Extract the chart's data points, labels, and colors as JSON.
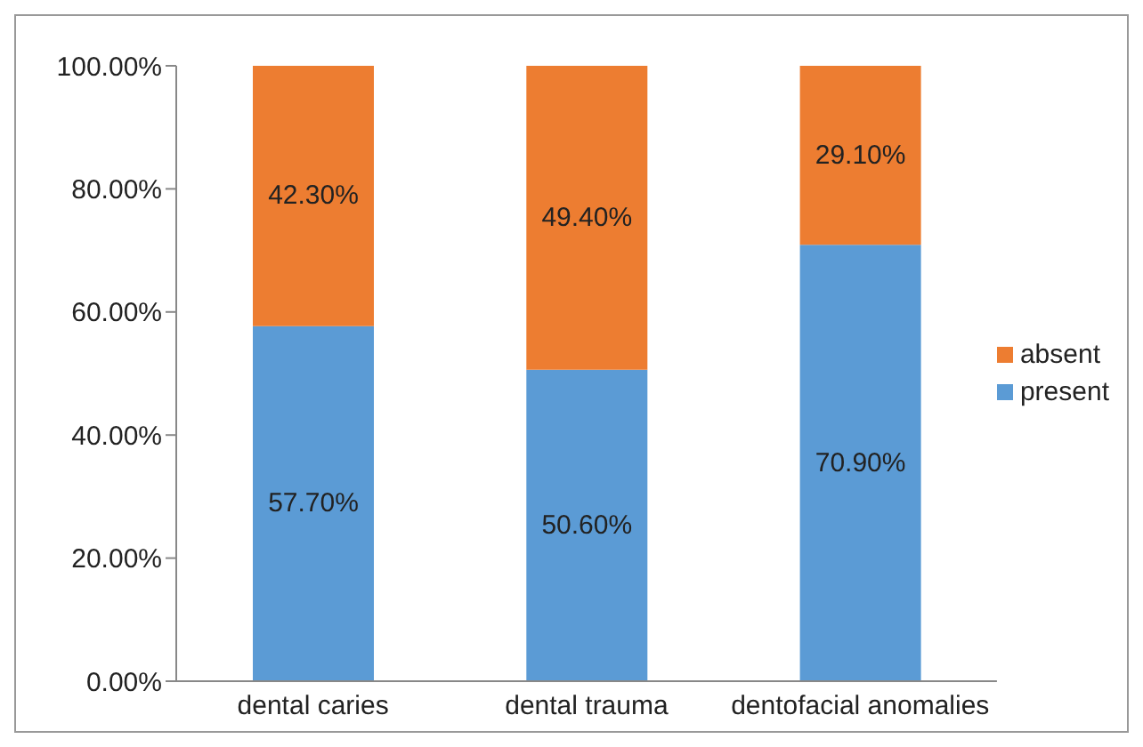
{
  "chart_data": {
    "type": "bar",
    "stacked": true,
    "categories": [
      "dental caries",
      "dental trauma",
      "dentofacial anomalies"
    ],
    "series": [
      {
        "name": "present",
        "color": "#5b9bd5",
        "values": [
          57.7,
          50.6,
          70.9
        ],
        "value_labels": [
          "57.70%",
          "50.60%",
          "70.90%"
        ]
      },
      {
        "name": "absent",
        "color": "#ed7d31",
        "values": [
          42.3,
          49.4,
          29.1
        ],
        "value_labels": [
          "42.30%",
          "49.40%",
          "29.10%"
        ]
      }
    ],
    "ylim": [
      0,
      100
    ],
    "yticks": [
      {
        "value": 0,
        "label": "0.00%"
      },
      {
        "value": 20,
        "label": "20.00%"
      },
      {
        "value": 40,
        "label": "40.00%"
      },
      {
        "value": 60,
        "label": "60.00%"
      },
      {
        "value": 80,
        "label": "80.00%"
      },
      {
        "value": 100,
        "label": "100.00%"
      }
    ],
    "grid": false,
    "legend": "right"
  }
}
